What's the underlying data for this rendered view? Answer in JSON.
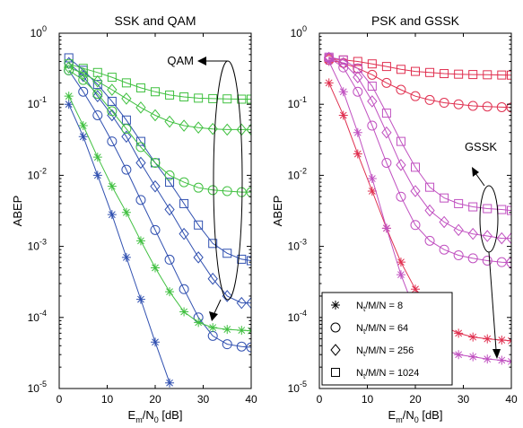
{
  "chart_data": [
    {
      "type": "line",
      "title": "SSK and QAM",
      "xlabel": "E_m/N_0 [dB]",
      "ylabel": "ABEP",
      "xlim": [
        0,
        40
      ],
      "ylim": [
        1e-05,
        1
      ],
      "yscale": "log",
      "xticks": [
        "0",
        "10",
        "20",
        "30",
        "40"
      ],
      "yticks": [
        "10^-5",
        "10^-4",
        "10^-3",
        "10^-2",
        "10^-1",
        "10^0"
      ],
      "grid": false,
      "annotations": [
        {
          "text": "QAM"
        }
      ],
      "series": [
        {
          "group": "SSK",
          "marker": "star",
          "color": "#3050b0",
          "x": [
            2,
            5,
            8,
            11,
            14,
            17,
            20,
            23
          ],
          "y": [
            0.1,
            0.035,
            0.01,
            0.0028,
            0.0007,
            0.00018,
            4.5e-05,
            1.2e-05
          ]
        },
        {
          "group": "SSK",
          "marker": "circle",
          "color": "#3050b0",
          "x": [
            2,
            5,
            8,
            11,
            14,
            17,
            20,
            23,
            26,
            29,
            32,
            35,
            38,
            40
          ],
          "y": [
            0.3,
            0.15,
            0.07,
            0.03,
            0.012,
            0.0045,
            0.0017,
            0.00065,
            0.00025,
            0.0001,
            5.5e-05,
            4.2e-05,
            3.9e-05,
            3.8e-05
          ]
        },
        {
          "group": "SSK",
          "marker": "diamond",
          "color": "#3050b0",
          "x": [
            2,
            5,
            8,
            11,
            14,
            17,
            20,
            23,
            26,
            29,
            32,
            35,
            38,
            40
          ],
          "y": [
            0.38,
            0.25,
            0.13,
            0.07,
            0.035,
            0.015,
            0.007,
            0.0033,
            0.0015,
            0.0007,
            0.00035,
            0.0002,
            0.00016,
            0.00016
          ]
        },
        {
          "group": "SSK",
          "marker": "square",
          "color": "#3050b0",
          "x": [
            2,
            5,
            8,
            11,
            14,
            17,
            20,
            23,
            26,
            29,
            32,
            35,
            38,
            40
          ],
          "y": [
            0.45,
            0.3,
            0.19,
            0.11,
            0.06,
            0.03,
            0.015,
            0.008,
            0.004,
            0.002,
            0.0011,
            0.0008,
            0.00066,
            0.00063
          ]
        },
        {
          "group": "QAM",
          "marker": "star",
          "color": "#40c040",
          "x": [
            2,
            5,
            8,
            11,
            14,
            17,
            20,
            23,
            26,
            29,
            32,
            35,
            38,
            40
          ],
          "y": [
            0.13,
            0.05,
            0.018,
            0.007,
            0.003,
            0.0012,
            0.0005,
            0.00023,
            0.00012,
            8.5e-05,
            7.2e-05,
            6.8e-05,
            6.6e-05,
            6.5e-05
          ]
        },
        {
          "group": "QAM",
          "marker": "circle",
          "color": "#40c040",
          "x": [
            2,
            5,
            8,
            11,
            14,
            17,
            20,
            23,
            26,
            29,
            32,
            35,
            38,
            40
          ],
          "y": [
            0.3,
            0.22,
            0.14,
            0.08,
            0.045,
            0.025,
            0.015,
            0.01,
            0.008,
            0.0067,
            0.0062,
            0.006,
            0.0058,
            0.0058
          ]
        },
        {
          "group": "QAM",
          "marker": "diamond",
          "color": "#40c040",
          "x": [
            2,
            5,
            8,
            11,
            14,
            17,
            20,
            23,
            26,
            29,
            32,
            35,
            38,
            40
          ],
          "y": [
            0.33,
            0.27,
            0.21,
            0.16,
            0.12,
            0.09,
            0.07,
            0.057,
            0.05,
            0.047,
            0.045,
            0.044,
            0.044,
            0.044
          ]
        },
        {
          "group": "QAM",
          "marker": "square",
          "color": "#40c040",
          "x": [
            2,
            5,
            8,
            11,
            14,
            17,
            20,
            23,
            26,
            29,
            32,
            35,
            38,
            40
          ],
          "y": [
            0.37,
            0.32,
            0.28,
            0.24,
            0.2,
            0.17,
            0.15,
            0.135,
            0.127,
            0.122,
            0.12,
            0.119,
            0.118,
            0.118
          ]
        }
      ]
    },
    {
      "type": "line",
      "title": "PSK and GSSK",
      "xlabel": "E_m/N_0 [dB]",
      "ylabel": "ABEP",
      "xlim": [
        0,
        40
      ],
      "ylim": [
        1e-05,
        1
      ],
      "yscale": "log",
      "xticks": [
        "0",
        "10",
        "20",
        "30",
        "40"
      ],
      "yticks": [
        "10^-5",
        "10^-4",
        "10^-3",
        "10^-2",
        "10^-1",
        "10^0"
      ],
      "grid": false,
      "annotations": [
        {
          "text": "GSSK"
        }
      ],
      "legend": {
        "placement": "bottom-left",
        "entries": [
          {
            "marker": "star",
            "label_main": "N",
            "label_sub": "t",
            "label_rest": "/M/N = 8"
          },
          {
            "marker": "circle",
            "label_main": "N",
            "label_sub": "t",
            "label_rest": "/M/N = 64"
          },
          {
            "marker": "diamond",
            "label_main": "N",
            "label_sub": "t",
            "label_rest": "/M/N = 256"
          },
          {
            "marker": "square",
            "label_main": "N",
            "label_sub": "t",
            "label_rest": "/M/N = 1024"
          }
        ]
      },
      "series": [
        {
          "group": "GSSK",
          "marker": "star",
          "color": "#e03050",
          "x": [
            2,
            5,
            8,
            11,
            14,
            17,
            20,
            23,
            26,
            29,
            32,
            35,
            38,
            40
          ],
          "y": [
            0.2,
            0.07,
            0.02,
            0.006,
            0.0018,
            0.0006,
            0.00025,
            0.00012,
            7.5e-05,
            6e-05,
            5.3e-05,
            5e-05,
            4.8e-05,
            4.7e-05
          ]
        },
        {
          "group": "GSSK",
          "marker": "circle",
          "color": "#e03050",
          "x": [
            2,
            5,
            8,
            11,
            14,
            17,
            20,
            23,
            26,
            29,
            32,
            35,
            38,
            40
          ],
          "y": [
            0.42,
            0.38,
            0.32,
            0.26,
            0.2,
            0.16,
            0.13,
            0.115,
            0.105,
            0.1,
            0.095,
            0.093,
            0.091,
            0.09
          ]
        },
        {
          "group": "GSSK",
          "marker": "square",
          "color": "#e03050",
          "x": [
            2,
            5,
            8,
            11,
            14,
            17,
            20,
            23,
            26,
            29,
            32,
            35,
            38,
            40
          ],
          "y": [
            0.44,
            0.42,
            0.4,
            0.37,
            0.34,
            0.31,
            0.29,
            0.28,
            0.27,
            0.265,
            0.262,
            0.26,
            0.258,
            0.257
          ]
        },
        {
          "group": "PSK",
          "marker": "star",
          "color": "#c050c0",
          "x": [
            2,
            5,
            8,
            11,
            14,
            17,
            20,
            23,
            26,
            29,
            32,
            35,
            38,
            40
          ],
          "y": [
            0.4,
            0.15,
            0.04,
            0.009,
            0.0018,
            0.0004,
            0.00012,
            5e-05,
            3.5e-05,
            3e-05,
            2.8e-05,
            2.6e-05,
            2.5e-05,
            2.4e-05
          ]
        },
        {
          "group": "PSK",
          "marker": "circle",
          "color": "#c050c0",
          "x": [
            2,
            5,
            8,
            11,
            14,
            17,
            20,
            23,
            26,
            29,
            32,
            35,
            38,
            40
          ],
          "y": [
            0.45,
            0.33,
            0.15,
            0.05,
            0.015,
            0.005,
            0.002,
            0.0012,
            0.0009,
            0.00075,
            0.00068,
            0.00063,
            0.0006,
            0.00059
          ]
        },
        {
          "group": "PSK",
          "marker": "diamond",
          "color": "#c050c0",
          "x": [
            2,
            5,
            8,
            11,
            14,
            17,
            20,
            23,
            26,
            29,
            32,
            35,
            38,
            40
          ],
          "y": [
            0.45,
            0.38,
            0.24,
            0.11,
            0.04,
            0.014,
            0.006,
            0.0032,
            0.0022,
            0.0017,
            0.0015,
            0.0014,
            0.0013,
            0.0013
          ]
        },
        {
          "group": "PSK",
          "marker": "square",
          "color": "#c050c0",
          "x": [
            2,
            5,
            8,
            11,
            14,
            17,
            20,
            23,
            26,
            29,
            32,
            35,
            38,
            40
          ],
          "y": [
            0.46,
            0.42,
            0.32,
            0.18,
            0.075,
            0.03,
            0.013,
            0.0068,
            0.0048,
            0.004,
            0.0036,
            0.0034,
            0.0033,
            0.0032
          ]
        }
      ]
    }
  ]
}
